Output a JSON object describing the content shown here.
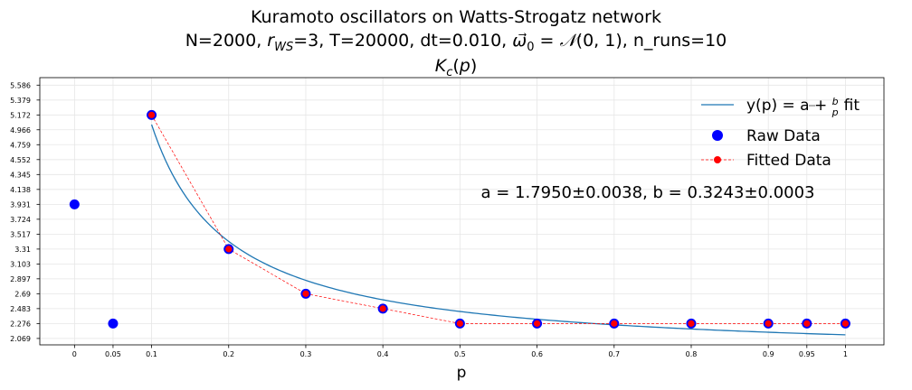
{
  "chart_data": {
    "type": "scatter",
    "title_lines": [
      "Kuramoto oscillators on Watts-Strogatz network",
      "N=2000, r_WS=3, T=20000, dt=0.010, ω0 = N(0,1), n_runs=10",
      "K_c(p)"
    ],
    "xlabel": "p",
    "ylabel": "",
    "xlim": [
      -0.045,
      1.05
    ],
    "ylim": [
      1.98,
      5.69
    ],
    "x_ticks": [
      0,
      0.05,
      0.1,
      0.2,
      0.3,
      0.4,
      0.5,
      0.6,
      0.7,
      0.8,
      0.9,
      0.95,
      1
    ],
    "x_tick_labels": [
      "0",
      "0.05",
      "0.1",
      "0.2",
      "0.3",
      "0.4",
      "0.5",
      "0.6",
      "0.7",
      "0.8",
      "0.9",
      "0.95",
      "1"
    ],
    "y_ticks": [
      2.069,
      2.276,
      2.483,
      2.69,
      2.897,
      3.103,
      3.31,
      3.517,
      3.724,
      3.931,
      4.138,
      4.345,
      4.552,
      4.759,
      4.966,
      5.172,
      5.379,
      5.586
    ],
    "y_tick_labels": [
      "2.069",
      "2.276",
      "2.483",
      "2.69",
      "2.897",
      "3.103",
      "3.31",
      "3.517",
      "3.724",
      "3.931",
      "4.138",
      "4.345",
      "4.552",
      "4.759",
      "4.966",
      "5.172",
      "5.379",
      "5.586"
    ],
    "grid": true,
    "legend_position": "top-right",
    "series": [
      {
        "name": "y(p) = a + b/p fit",
        "kind": "line",
        "color": "#1f77b4",
        "fit": {
          "a": 1.795,
          "b": 0.3243,
          "x_start": 0.1,
          "x_end": 1.0
        }
      },
      {
        "name": "Raw Data",
        "kind": "scatter",
        "color": "#0000ff",
        "x": [
          0,
          0.05,
          0.1,
          0.2,
          0.3,
          0.4,
          0.5,
          0.6,
          0.7,
          0.8,
          0.9,
          0.95,
          1
        ],
        "y": [
          3.931,
          2.276,
          5.172,
          3.31,
          2.69,
          2.483,
          2.276,
          2.276,
          2.276,
          2.276,
          2.276,
          2.276,
          2.276
        ]
      },
      {
        "name": "Fitted Data",
        "kind": "line-markers",
        "color": "#ff0000",
        "x": [
          0.1,
          0.2,
          0.3,
          0.4,
          0.5,
          0.6,
          0.7,
          0.8,
          0.9,
          0.95,
          1
        ],
        "y": [
          5.172,
          3.31,
          2.69,
          2.483,
          2.276,
          2.276,
          2.276,
          2.276,
          2.276,
          2.276,
          2.276
        ]
      }
    ],
    "legend": [
      "y(p) = a + b/p fit",
      "Raw Data",
      "Fitted Data"
    ],
    "annotation": "a = 1.7950±0.0038, b = 0.3243±0.0003"
  }
}
